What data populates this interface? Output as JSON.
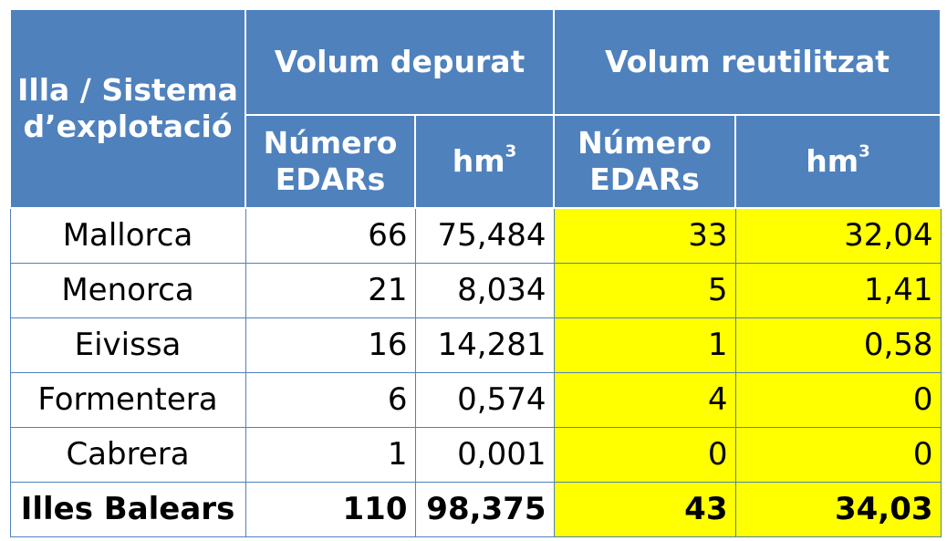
{
  "header": {
    "col_island": "Illa / Sistema d’explotació",
    "group_treated": "Volum depurat",
    "group_reused": "Volum reutilitzat",
    "sub_count": "Número EDARs",
    "sub_volume_base": "hm",
    "sub_volume_exp": "3"
  },
  "rows": [
    {
      "name": "Mallorca",
      "treated_count": "66",
      "treated_hm3": "75,484",
      "reused_count": "33",
      "reused_hm3": "32,04"
    },
    {
      "name": "Menorca",
      "treated_count": "21",
      "treated_hm3": "8,034",
      "reused_count": "5",
      "reused_hm3": "1,41"
    },
    {
      "name": "Eivissa",
      "treated_count": "16",
      "treated_hm3": "14,281",
      "reused_count": "1",
      "reused_hm3": "0,58"
    },
    {
      "name": "Formentera",
      "treated_count": "6",
      "treated_hm3": "0,574",
      "reused_count": "4",
      "reused_hm3": "0"
    },
    {
      "name": "Cabrera",
      "treated_count": "1",
      "treated_hm3": "0,001",
      "reused_count": "0",
      "reused_hm3": "0"
    }
  ],
  "total": {
    "name": "Illes Balears",
    "treated_count": "110",
    "treated_hm3": "98,375",
    "reused_count": "43",
    "reused_hm3": "34,03"
  },
  "colors": {
    "header_bg": "#4f81bd",
    "header_text": "#ffffff",
    "highlight": "#ffff00",
    "grid": "#4f81bd"
  }
}
